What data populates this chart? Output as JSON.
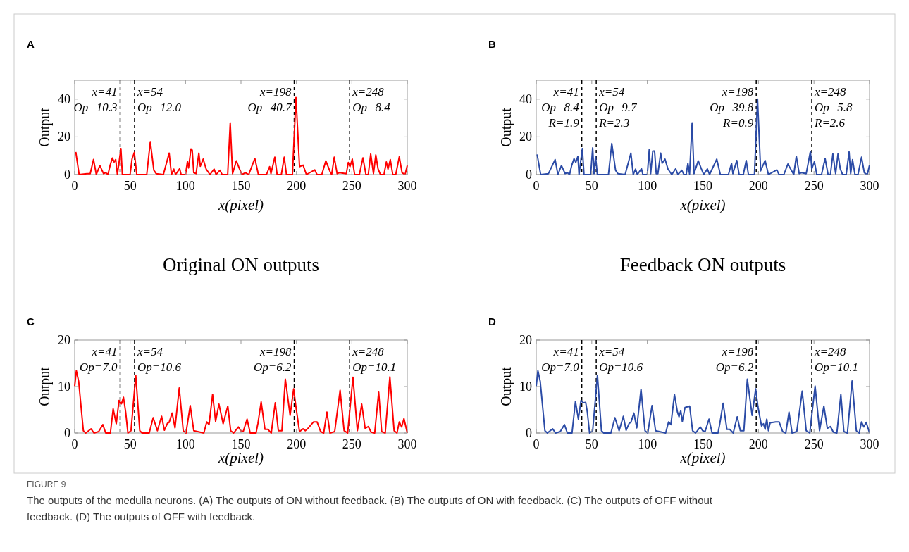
{
  "chart_data": [
    {
      "type": "line",
      "title": "A",
      "subtitle": "Original ON outputs",
      "xlabel": "x(pixel)",
      "ylabel": "Output",
      "xlim": [
        0,
        300
      ],
      "xticks": [
        0,
        50,
        100,
        150,
        200,
        250,
        300
      ],
      "ylim": [
        0,
        50
      ],
      "yticks": [
        0,
        20,
        40
      ],
      "series": [
        {
          "color": "#ff0000",
          "x": [
            1,
            4,
            11,
            14,
            17,
            19.5,
            22.7,
            26,
            28,
            30,
            32,
            34,
            35.6,
            37,
            38.5,
            41.7,
            43,
            50,
            51.7,
            53.8,
            56,
            65,
            68.2,
            71.4,
            73.5,
            80,
            85.2,
            87.3,
            89.4,
            91,
            94.7,
            96,
            100,
            101.7,
            102.7,
            104.9,
            106,
            107.4,
            109.5,
            112,
            113.3,
            115.9,
            118.6,
            122,
            125.8,
            127.5,
            131,
            133,
            138,
            140.3,
            142.4,
            145.8,
            148.7,
            150.8,
            154,
            157,
            162.5,
            165.7,
            173,
            175.8,
            177,
            180.5,
            182.6,
            186.4,
            189,
            191,
            196.4,
            199.6,
            202.8,
            206,
            209,
            216.5,
            218.6,
            222.9,
            226.5,
            230.3,
            231.8,
            234.1,
            236.7,
            238.8,
            245,
            246.8,
            248.3,
            250.4,
            252.5,
            256.8,
            260,
            262.7,
            264.8,
            267,
            269.5,
            271.6,
            273.7,
            275.8,
            279,
            281.1,
            282.6,
            284.7,
            286.9,
            289.6,
            292.8,
            295.3,
            298,
            300
          ],
          "values": [
            12,
            0,
            0.5,
            0.5,
            8,
            0,
            4.8,
            0.5,
            1,
            0,
            5,
            8.8,
            6.7,
            8,
            0,
            13.8,
            0,
            0,
            8.2,
            11.7,
            0,
            0,
            17.4,
            2.3,
            0.5,
            0,
            11.4,
            0,
            2.9,
            0,
            3.1,
            0,
            0,
            6.9,
            3.5,
            13.6,
            13,
            1,
            0.5,
            11.4,
            4.4,
            8.2,
            2.9,
            0,
            2.9,
            0,
            2.3,
            0,
            0,
            27.4,
            0.5,
            7.3,
            2.9,
            0,
            1,
            0,
            8.6,
            0,
            0,
            4.2,
            0.5,
            9.2,
            0,
            0,
            9.2,
            0,
            0,
            40.9,
            4.2,
            5,
            0,
            2.5,
            0,
            0,
            7.3,
            1.6,
            0,
            9.2,
            0.5,
            1,
            0.5,
            6.4,
            4.2,
            8.2,
            0,
            0,
            8.9,
            0,
            0,
            11,
            0.5,
            10.4,
            2.9,
            0,
            0,
            6.7,
            2.9,
            7.9,
            0,
            0,
            9.4,
            1,
            0,
            4.8
          ]
        }
      ],
      "ref_lines": [
        {
          "axis": "x",
          "value": 41,
          "line_style": "dashed",
          "color": "#000000",
          "label": "x=41\nOp=10.3"
        },
        {
          "axis": "x",
          "value": 54,
          "line_style": "dashed",
          "color": "#000000",
          "label": "x=54\nOp=12.0"
        },
        {
          "axis": "x",
          "value": 198,
          "line_style": "dashed",
          "color": "#000000",
          "label": "x=198\nOp=40.7"
        },
        {
          "axis": "x",
          "value": 248,
          "line_style": "dashed",
          "color": "#000000",
          "label": "x=248\nOp=8.4"
        }
      ]
    },
    {
      "type": "line",
      "title": "B",
      "subtitle": "Feedback ON outputs",
      "xlabel": "x(pixel)",
      "ylabel": "Output",
      "xlim": [
        0,
        300
      ],
      "xticks": [
        0,
        50,
        100,
        150,
        200,
        250,
        300
      ],
      "ylim": [
        0,
        50
      ],
      "yticks": [
        0,
        20,
        40
      ],
      "series": [
        {
          "color": "#2b4ba6",
          "x": [
            0.8,
            4,
            11,
            17,
            19.5,
            22.7,
            26,
            28,
            30,
            32,
            34,
            35.6,
            37.5,
            38.5,
            41.5,
            43,
            49,
            50.8,
            52,
            53.4,
            55,
            65,
            68,
            71.4,
            73.5,
            80,
            85.2,
            87.3,
            89.4,
            91,
            94.7,
            96,
            100,
            101.7,
            103,
            104.9,
            106.5,
            108,
            109.5,
            112,
            113.3,
            115.9,
            118.6,
            122,
            125.5,
            127.5,
            131,
            133,
            135,
            136.5,
            138,
            140.3,
            142,
            145.8,
            148.7,
            150.8,
            154,
            156,
            162.5,
            165.7,
            173,
            175.8,
            177,
            180.5,
            182.6,
            186.4,
            189,
            191,
            196.4,
            199.2,
            202,
            206,
            209,
            216.5,
            218.6,
            222.9,
            226.5,
            231.8,
            234.1,
            236.7,
            238.8,
            243,
            246.8,
            248,
            250.4,
            252.5,
            256.8,
            260,
            262.7,
            264.8,
            267,
            269.5,
            271.6,
            273.7,
            275.8,
            279,
            281.6,
            283,
            284.7,
            286.9,
            289.6,
            292.8,
            295.3,
            298,
            300
          ],
          "values": [
            10.7,
            0,
            0.5,
            8,
            0,
            4.8,
            0.5,
            1,
            0,
            5,
            8.4,
            6.5,
            9.7,
            0,
            13.8,
            0,
            0,
            14.2,
            0.5,
            9.7,
            0,
            0,
            16.5,
            2.3,
            0.5,
            0,
            11.4,
            0,
            2.9,
            0,
            3.1,
            0,
            0,
            13.2,
            0.5,
            12.5,
            12.5,
            0.5,
            0.5,
            11.4,
            6,
            8.2,
            2.9,
            0,
            3.1,
            0,
            2.3,
            0,
            0,
            6,
            0.3,
            27.4,
            0.5,
            7.3,
            2.9,
            0,
            3,
            0,
            8.2,
            0,
            0,
            6,
            0.5,
            7.5,
            0,
            0,
            7.5,
            0,
            0,
            40,
            2,
            7.5,
            0,
            2.5,
            0,
            0,
            5.6,
            0,
            9.7,
            0.5,
            1,
            0.5,
            12.3,
            3,
            6.9,
            0,
            0,
            8.6,
            0,
            0,
            11,
            0.5,
            11,
            2.9,
            0,
            0,
            12,
            0.5,
            7.9,
            0,
            0,
            9.2,
            1,
            0,
            5
          ]
        }
      ],
      "ref_lines": [
        {
          "axis": "x",
          "value": 41,
          "line_style": "dashed",
          "color": "#000000",
          "label": "x=41\nOp=8.4\nR=1.9"
        },
        {
          "axis": "x",
          "value": 54,
          "line_style": "dashed",
          "color": "#000000",
          "label": "x=54\nOp=9.7\nR=2.3"
        },
        {
          "axis": "x",
          "value": 198,
          "line_style": "dashed",
          "color": "#000000",
          "label": "x=198\nOp=39.8\nR=0.9"
        },
        {
          "axis": "x",
          "value": 248,
          "line_style": "dashed",
          "color": "#000000",
          "label": "x=248\nOp=5.8\nR=2.6"
        }
      ]
    },
    {
      "type": "line",
      "title": "C",
      "xlabel": "x(pixel)",
      "ylabel": "Output",
      "xlim": [
        0,
        300
      ],
      "xticks": [
        0,
        50,
        100,
        150,
        200,
        250,
        300
      ],
      "ylim": [
        0,
        20
      ],
      "yticks": [
        0,
        10,
        20
      ],
      "series": [
        {
          "color": "#ff0000",
          "x": [
            0,
            1.5,
            3.6,
            7.8,
            10,
            14.8,
            17.4,
            21.6,
            25.4,
            28,
            32.2,
            34.7,
            37.5,
            40,
            42.2,
            44,
            46,
            48,
            50.8,
            55.1,
            58.7,
            60.8,
            67.2,
            70.8,
            74.6,
            78.4,
            80.9,
            83.7,
            85.2,
            87.9,
            90.5,
            94.3,
            97.9,
            100.4,
            104.2,
            107.4,
            116.5,
            119.1,
            121.2,
            124.4,
            127.1,
            130.1,
            133.9,
            138.1,
            140.7,
            143.4,
            147.7,
            149.8,
            152,
            155.5,
            158.3,
            163.6,
            165.3,
            168.2,
            171.6,
            174.2,
            177.3,
            180.9,
            183.7,
            186.9,
            190,
            194.3,
            197.5,
            199.6,
            202.8,
            206,
            208,
            210,
            215.5,
            218.6,
            221.8,
            224.6,
            227.5,
            230.3,
            234.5,
            239.4,
            243,
            246.2,
            251,
            255,
            258.9,
            262,
            264.8,
            267.4,
            270.6,
            274.2,
            276.9,
            280.1,
            284.3,
            288.1,
            290.7,
            292.8,
            294.9,
            297,
            300
          ],
          "values": [
            10.1,
            13.4,
            11.1,
            0.5,
            0,
            0.9,
            0,
            0.3,
            1.8,
            0,
            0,
            5.2,
            2,
            7,
            6.3,
            7.7,
            4.5,
            0,
            0.5,
            12.4,
            0.5,
            0,
            0,
            3.3,
            0.5,
            3.6,
            0.6,
            2.1,
            2.3,
            4.3,
            1.1,
            9.7,
            0.5,
            0,
            5.9,
            0.5,
            0,
            2.4,
            1.8,
            8.3,
            2.5,
            6.2,
            2,
            5.8,
            0.5,
            0,
            1.3,
            0.5,
            0.3,
            3,
            0,
            0,
            2.1,
            6.7,
            0.8,
            0.8,
            0,
            6.5,
            0.5,
            0.5,
            11.6,
            3.8,
            9.5,
            5.6,
            0.3,
            0.9,
            0.5,
            0.9,
            2.4,
            2.4,
            0.3,
            0,
            4.5,
            0,
            0.3,
            9.2,
            0.5,
            0,
            12,
            0.5,
            6.2,
            1,
            1.4,
            0.2,
            0,
            8.8,
            0.3,
            0,
            12.1,
            0.5,
            0,
            2.4,
            1.3,
            3.1,
            0
          ]
        }
      ],
      "ref_lines": [
        {
          "axis": "x",
          "value": 41,
          "line_style": "dashed",
          "color": "#000000",
          "label": "x=41\nOp=7.0"
        },
        {
          "axis": "x",
          "value": 54,
          "line_style": "dashed",
          "color": "#000000",
          "label": "x=54\nOp=10.6"
        },
        {
          "axis": "x",
          "value": 198,
          "line_style": "dashed",
          "color": "#000000",
          "label": "x=198\nOp=6.2"
        },
        {
          "axis": "x",
          "value": 248,
          "line_style": "dashed",
          "color": "#000000",
          "label": "x=248\nOp=10.1"
        }
      ]
    },
    {
      "type": "line",
      "title": "D",
      "xlabel": "x(pixel)",
      "ylabel": "Output",
      "xlim": [
        0,
        300
      ],
      "xticks": [
        0,
        50,
        100,
        150,
        200,
        250,
        300
      ],
      "ylim": [
        0,
        20
      ],
      "yticks": [
        0,
        10,
        20
      ],
      "series": [
        {
          "color": "#2b4ba6",
          "x": [
            0,
            1.5,
            3.6,
            7.8,
            10,
            14.8,
            17.4,
            21.6,
            25.4,
            28,
            32.2,
            35.3,
            37.9,
            40.3,
            42.4,
            44.5,
            46,
            48,
            50.8,
            55.1,
            58.7,
            60.8,
            67.2,
            70.8,
            74.6,
            78.4,
            80.9,
            83.7,
            85.2,
            87.9,
            90.5,
            94.3,
            97.9,
            100.4,
            104.2,
            107.4,
            116.5,
            119.1,
            121.2,
            124.4,
            127.1,
            128.5,
            130.1,
            131.5,
            133.9,
            138.1,
            140.7,
            143.4,
            147.7,
            149.8,
            152,
            155.5,
            158.3,
            163.6,
            165.3,
            168.2,
            171.6,
            174.2,
            177.3,
            180.9,
            183.7,
            186.9,
            190,
            194.3,
            197.5,
            199.6,
            202.8,
            204.5,
            206,
            207.5,
            209,
            210.5,
            215.5,
            218.6,
            221.8,
            224.6,
            227.5,
            230.3,
            234.5,
            239.4,
            243,
            246.2,
            251,
            255,
            258.9,
            262,
            264.8,
            267.4,
            270.6,
            274.2,
            276.9,
            280.1,
            284.3,
            288.1,
            290.7,
            292.8,
            294.9,
            297,
            300
          ],
          "values": [
            10.1,
            13.4,
            11.1,
            0.5,
            0,
            0.9,
            0,
            0.3,
            1.8,
            0,
            0,
            6.8,
            3,
            7,
            6.5,
            6.6,
            4.5,
            0,
            0.5,
            12.4,
            0.5,
            0,
            0,
            3.3,
            0.5,
            3.6,
            0.6,
            2.1,
            2.3,
            4.3,
            1.1,
            9.4,
            0.5,
            0,
            5.9,
            0.5,
            0,
            2.4,
            1.8,
            8.3,
            4.5,
            3.5,
            4.8,
            2.5,
            5.5,
            5.8,
            0.5,
            0,
            1.3,
            0.5,
            0.3,
            3,
            0,
            0,
            2.1,
            6.4,
            0.8,
            0.8,
            0,
            3.5,
            0.5,
            0.5,
            11.6,
            3.8,
            9.5,
            5.6,
            1.5,
            2,
            0.8,
            3,
            0.5,
            2.2,
            2.4,
            2.4,
            0.3,
            0,
            4.5,
            0,
            0.3,
            9,
            0.5,
            0,
            10.1,
            0.5,
            5.8,
            1,
            1.4,
            0.2,
            0,
            8.3,
            0.3,
            0,
            11.2,
            0.5,
            0,
            2.4,
            1.3,
            2.3,
            0
          ]
        }
      ],
      "ref_lines": [
        {
          "axis": "x",
          "value": 41,
          "line_style": "dashed",
          "color": "#000000",
          "label": "x=41\nOp=7.0"
        },
        {
          "axis": "x",
          "value": 54,
          "line_style": "dashed",
          "color": "#000000",
          "label": "x=54\nOp=10.6"
        },
        {
          "axis": "x",
          "value": 198,
          "line_style": "dashed",
          "color": "#000000",
          "label": "x=198\nOp=6.2"
        },
        {
          "axis": "x",
          "value": 248,
          "line_style": "dashed",
          "color": "#000000",
          "label": "x=248\nOp=10.1"
        }
      ],
      "annotations": [
        "FIGURE 9",
        "The outputs of the medulla neurons. (A) The outputs of ON without feedback. (B) The outputs of ON with feedback. (C) The outputs of OFF without feedback. (D) The outputs of OFF with feedback."
      ]
    }
  ]
}
